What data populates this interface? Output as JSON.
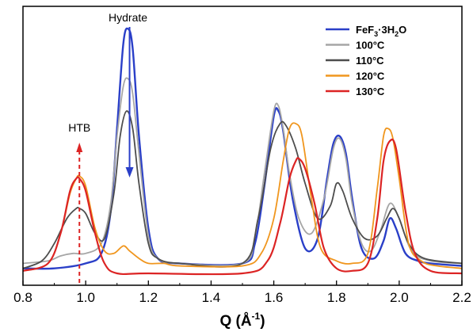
{
  "chart_data": {
    "type": "line",
    "title": "",
    "xlabel": "Q (Å⁻¹)",
    "xlabel_parts": {
      "main": "Q (Å",
      "sup": "-1",
      "tail": ")"
    },
    "ylabel": "",
    "xlim": [
      0.8,
      2.2
    ],
    "ylim": [
      0,
      1.07
    ],
    "xticks": [
      "0.8",
      "1.0",
      "1.2",
      "1.4",
      "1.6",
      "1.8",
      "2.0",
      "2.2"
    ],
    "grid": false,
    "legend_position": "top-right",
    "legend": [
      {
        "label": "FeF3·3H2O",
        "parts": {
          "a": "FeF",
          "s1": "3",
          "b": "·3H",
          "s2": "2",
          "c": "O"
        },
        "color": "#2a3fc8"
      },
      {
        "label": "100°C",
        "color": "#a6a6a6"
      },
      {
        "label": "110°C",
        "color": "#4d4d4d"
      },
      {
        "label": "120°C",
        "color": "#f0961e"
      },
      {
        "label": "130°C",
        "color": "#dc2424"
      }
    ],
    "annotations": [
      {
        "text": "Hydrate",
        "x": 1.14,
        "direction": "down",
        "color": "#2a3fc8"
      },
      {
        "text": "HTB",
        "x": 0.98,
        "direction": "up",
        "color": "#dc2424"
      }
    ],
    "series": [
      {
        "name": "FeF3·3H2O",
        "color": "#2a3fc8",
        "width": 2.4,
        "x": [
          0.8,
          0.9,
          1.0,
          1.05,
          1.08,
          1.1,
          1.12,
          1.135,
          1.15,
          1.17,
          1.2,
          1.23,
          1.3,
          1.5,
          1.54,
          1.57,
          1.6,
          1.615,
          1.63,
          1.66,
          1.7,
          1.74,
          1.77,
          1.79,
          1.81,
          1.83,
          1.85,
          1.88,
          1.92,
          1.95,
          1.97,
          1.99,
          2.02,
          2.06,
          2.1,
          2.2
        ],
        "y": [
          0.02,
          0.02,
          0.04,
          0.08,
          0.25,
          0.58,
          0.92,
          0.98,
          0.9,
          0.55,
          0.18,
          0.06,
          0.04,
          0.04,
          0.12,
          0.35,
          0.63,
          0.65,
          0.57,
          0.3,
          0.1,
          0.14,
          0.38,
          0.52,
          0.55,
          0.48,
          0.3,
          0.1,
          0.06,
          0.13,
          0.22,
          0.18,
          0.08,
          0.05,
          0.04,
          0.03
        ]
      },
      {
        "name": "100°C",
        "color": "#a6a6a6",
        "width": 1.8,
        "x": [
          0.8,
          0.88,
          0.92,
          0.96,
          1.0,
          1.05,
          1.08,
          1.1,
          1.12,
          1.135,
          1.15,
          1.17,
          1.2,
          1.23,
          1.3,
          1.5,
          1.54,
          1.57,
          1.6,
          1.615,
          1.63,
          1.65,
          1.68,
          1.72,
          1.76,
          1.79,
          1.81,
          1.83,
          1.85,
          1.88,
          1.91,
          1.94,
          1.97,
          2.0,
          2.04,
          2.1,
          2.2
        ],
        "y": [
          0.04,
          0.05,
          0.07,
          0.08,
          0.08,
          0.12,
          0.28,
          0.55,
          0.75,
          0.78,
          0.72,
          0.48,
          0.15,
          0.06,
          0.04,
          0.04,
          0.15,
          0.4,
          0.65,
          0.67,
          0.58,
          0.4,
          0.22,
          0.16,
          0.3,
          0.5,
          0.54,
          0.46,
          0.28,
          0.12,
          0.09,
          0.17,
          0.28,
          0.22,
          0.09,
          0.05,
          0.04
        ]
      },
      {
        "name": "110°C",
        "color": "#4d4d4d",
        "width": 1.8,
        "x": [
          0.8,
          0.86,
          0.9,
          0.94,
          0.97,
          0.98,
          1.0,
          1.03,
          1.06,
          1.09,
          1.11,
          1.13,
          1.15,
          1.17,
          1.2,
          1.23,
          1.3,
          1.5,
          1.55,
          1.59,
          1.62,
          1.64,
          1.67,
          1.7,
          1.74,
          1.78,
          1.8,
          1.82,
          1.85,
          1.89,
          1.93,
          1.96,
          1.98,
          2.0,
          2.03,
          2.08,
          2.2
        ],
        "y": [
          0.02,
          0.05,
          0.12,
          0.22,
          0.26,
          0.26,
          0.24,
          0.16,
          0.14,
          0.32,
          0.55,
          0.65,
          0.58,
          0.36,
          0.12,
          0.06,
          0.04,
          0.04,
          0.22,
          0.5,
          0.6,
          0.59,
          0.5,
          0.36,
          0.22,
          0.27,
          0.36,
          0.33,
          0.22,
          0.14,
          0.15,
          0.22,
          0.26,
          0.22,
          0.12,
          0.06,
          0.04
        ]
      },
      {
        "name": "120°C",
        "color": "#f0961e",
        "width": 1.8,
        "x": [
          0.8,
          0.88,
          0.92,
          0.95,
          0.97,
          0.98,
          1.0,
          1.03,
          1.06,
          1.09,
          1.12,
          1.14,
          1.17,
          1.2,
          1.25,
          1.3,
          1.5,
          1.56,
          1.6,
          1.63,
          1.65,
          1.67,
          1.69,
          1.72,
          1.75,
          1.8,
          1.85,
          1.9,
          1.93,
          1.95,
          1.965,
          1.98,
          2.0,
          2.03,
          2.07,
          2.12,
          2.2
        ],
        "y": [
          0.01,
          0.04,
          0.16,
          0.32,
          0.38,
          0.39,
          0.35,
          0.18,
          0.09,
          0.08,
          0.11,
          0.09,
          0.06,
          0.04,
          0.04,
          0.03,
          0.03,
          0.08,
          0.22,
          0.45,
          0.58,
          0.6,
          0.55,
          0.3,
          0.1,
          0.05,
          0.04,
          0.08,
          0.34,
          0.55,
          0.58,
          0.54,
          0.38,
          0.12,
          0.05,
          0.03,
          0.02
        ]
      },
      {
        "name": "130°C",
        "color": "#dc2424",
        "width": 2.2,
        "x": [
          0.8,
          0.88,
          0.92,
          0.95,
          0.97,
          0.98,
          1.0,
          1.03,
          1.06,
          1.1,
          1.2,
          1.5,
          1.58,
          1.62,
          1.65,
          1.67,
          1.68,
          1.7,
          1.73,
          1.76,
          1.8,
          1.85,
          1.9,
          1.93,
          1.95,
          1.97,
          1.99,
          2.02,
          2.05,
          2.1,
          2.2
        ],
        "y": [
          0.01,
          0.04,
          0.16,
          0.33,
          0.38,
          0.38,
          0.33,
          0.16,
          0.04,
          0.0,
          0.0,
          0.0,
          0.05,
          0.2,
          0.38,
          0.45,
          0.46,
          0.42,
          0.28,
          0.1,
          0.02,
          0.01,
          0.04,
          0.22,
          0.45,
          0.53,
          0.5,
          0.25,
          0.08,
          0.01,
          0.0
        ]
      }
    ]
  }
}
